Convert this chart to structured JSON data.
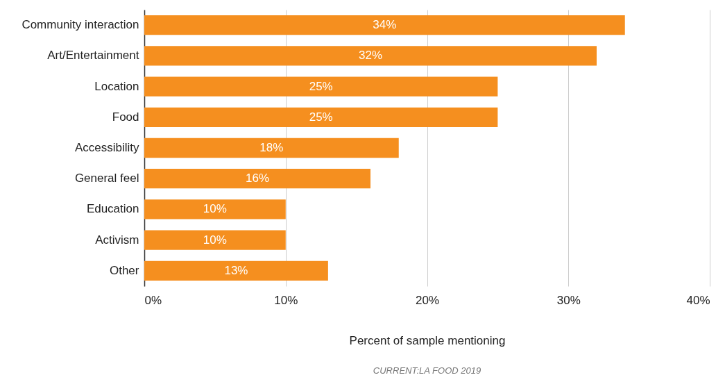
{
  "chart_data": {
    "type": "bar",
    "orientation": "horizontal",
    "categories": [
      "Community interaction",
      "Art/Entertainment",
      "Location",
      "Food",
      "Accessibility",
      "General feel",
      "Education",
      "Activism",
      "Other"
    ],
    "values": [
      34,
      32,
      25,
      25,
      18,
      16,
      10,
      10,
      13
    ],
    "value_labels": [
      "34%",
      "32%",
      "25%",
      "25%",
      "18%",
      "16%",
      "10%",
      "10%",
      "13%"
    ],
    "color": "#f58f1f",
    "xlim": [
      0,
      40
    ],
    "xticks": [
      {
        "value": 0,
        "label": "0%"
      },
      {
        "value": 10,
        "label": "10%"
      },
      {
        "value": 20,
        "label": "20%"
      },
      {
        "value": 30,
        "label": "30%"
      },
      {
        "value": 40,
        "label": "40%"
      }
    ],
    "xlabel": "Percent of sample mentioning",
    "grid": "x",
    "annotations": [
      "CURRENT:LA FOOD 2019"
    ]
  }
}
